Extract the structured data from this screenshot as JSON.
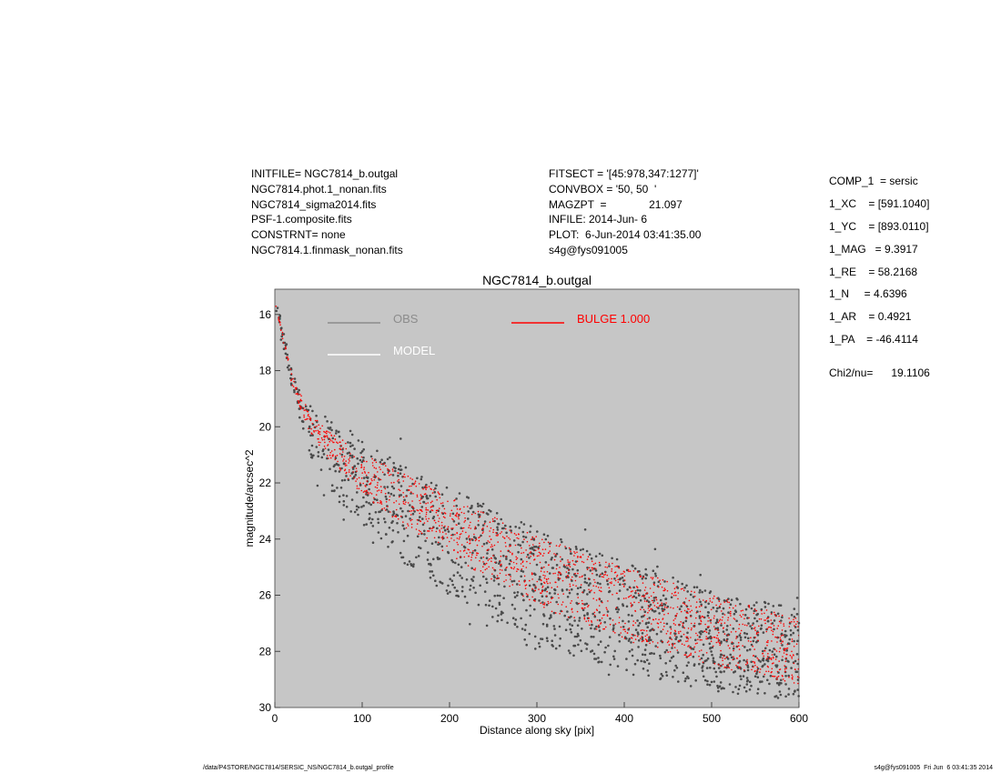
{
  "header": {
    "left_lines": [
      "INITFILE= NGC7814_b.outgal",
      "NGC7814.phot.1_nonan.fits",
      "NGC7814_sigma2014.fits",
      "PSF-1.composite.fits",
      "CONSTRNT= none",
      "NGC7814.1.finmask_nonan.fits"
    ],
    "mid_lines": [
      "FITSECT = '[45:978,347:1277]'",
      "CONVBOX = '50, 50  '",
      "MAGZPT  =              21.097",
      "INFILE: 2014-Jun- 6",
      "PLOT:  6-Jun-2014 03:41:35.00",
      "s4g@fys091005"
    ],
    "params": [
      "COMP_1  = sersic",
      "1_XC    = [591.1040]",
      "1_YC    = [893.0110]",
      "1_MAG   = 9.3917",
      "1_RE    = 58.2168",
      "1_N     = 4.6396",
      "1_AR    = 0.4921",
      "1_PA    = -46.4114"
    ],
    "chi2": "Chi2/nu=      19.1106"
  },
  "chart_data": {
    "type": "scatter",
    "title": "NGC7814_b.outgal",
    "xlabel": "Distance along sky [pix]",
    "ylabel": "magnitude/arcsec^2",
    "xlim": [
      0,
      600
    ],
    "ylim": [
      30,
      15.1
    ],
    "y_inverted": true,
    "x_ticks": [
      0,
      100,
      200,
      300,
      400,
      500,
      600
    ],
    "y_ticks": [
      16,
      18,
      20,
      22,
      24,
      26,
      28,
      30
    ],
    "background_color": "#c6c6c6",
    "grid": false,
    "legend": [
      {
        "label": "OBS",
        "color": "#8c8c8c"
      },
      {
        "label": "MODEL",
        "color": "#ffffff"
      },
      {
        "label": "BULGE  1.000",
        "color": "#ff0000"
      }
    ],
    "series": [
      {
        "name": "OBS",
        "color": "#4a4a4a",
        "upper_envelope": {
          "x": [
            0,
            20,
            40,
            70,
            100,
            150,
            200,
            300,
            400,
            500,
            600
          ],
          "y": [
            15.2,
            18.0,
            19.2,
            19.9,
            20.5,
            21.4,
            22.2,
            23.6,
            24.8,
            25.8,
            26.5
          ]
        },
        "lower_envelope": {
          "x": [
            0,
            20,
            40,
            70,
            100,
            150,
            200,
            300,
            400,
            500,
            600
          ],
          "y": [
            15.6,
            18.9,
            21.0,
            22.6,
            23.5,
            24.9,
            26.0,
            27.7,
            28.8,
            29.4,
            29.8
          ]
        }
      },
      {
        "name": "BULGE  1.000",
        "color": "#ff0000",
        "upper_envelope": {
          "x": [
            0,
            20,
            40,
            70,
            100,
            150,
            200,
            300,
            400,
            500,
            600
          ],
          "y": [
            15.4,
            18.2,
            19.5,
            20.3,
            20.9,
            21.7,
            22.5,
            23.9,
            25.0,
            26.0,
            26.8
          ]
        },
        "lower_envelope": {
          "x": [
            0,
            20,
            40,
            70,
            100,
            150,
            200,
            300,
            400,
            500,
            600
          ],
          "y": [
            15.5,
            18.6,
            20.2,
            21.5,
            22.4,
            23.6,
            24.6,
            26.4,
            27.6,
            28.5,
            29.2
          ]
        }
      }
    ]
  },
  "footer": {
    "left": "/data/P4STORE/NGC7814/SERSIC_NS/NGC7814_b.outgal_profile",
    "right": "s4g@fys091005  Fri Jun  6 03:41:35 2014"
  }
}
